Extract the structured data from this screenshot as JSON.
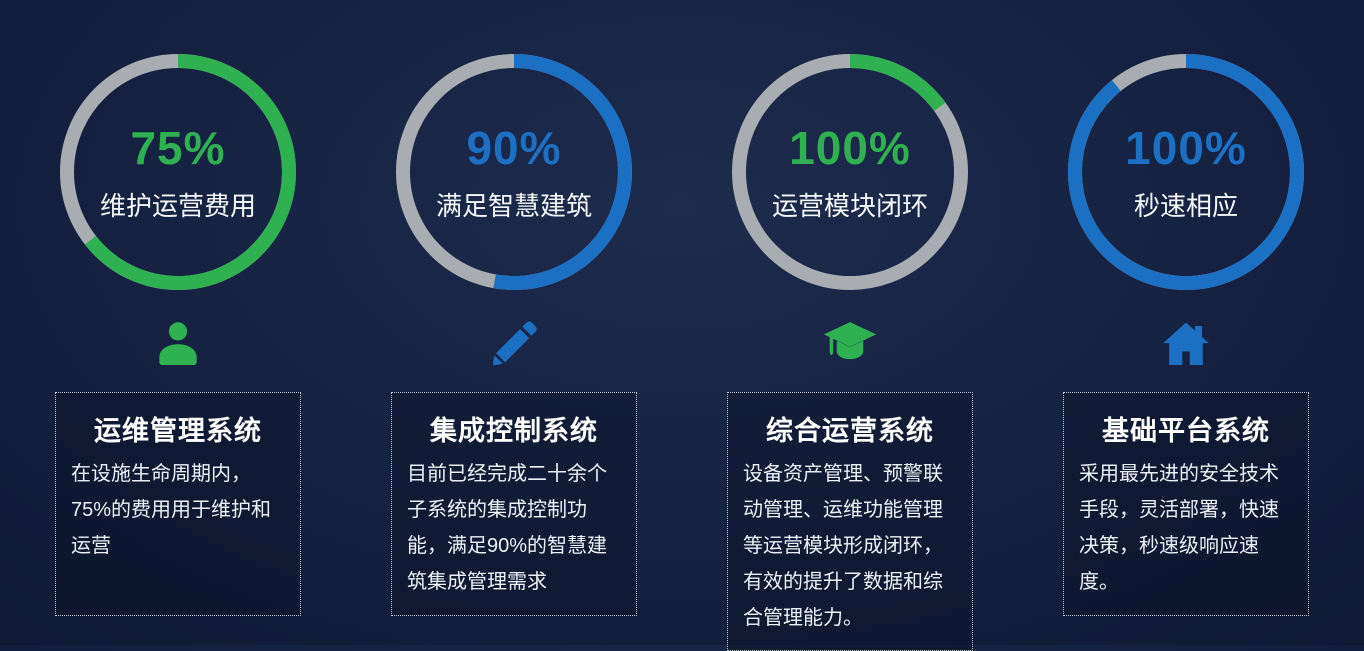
{
  "palette": {
    "green": "#2FB152",
    "blue": "#1C70C4",
    "track": "#A9ACB1",
    "background_center": "#1d2b4d",
    "background_edge": "#0a1122",
    "text_white": "#F5F7FA"
  },
  "chart_data": {
    "type": "pie",
    "variant": "donut-progress-gauges",
    "legend_position": "none",
    "series": [
      {
        "name": "维护运营费用",
        "value_label": "75%",
        "value": 75,
        "ring_fill_deg": 232,
        "color": "#2FB152"
      },
      {
        "name": "满足智慧建筑",
        "value_label": "90%",
        "value": 90,
        "ring_fill_deg": 190,
        "color": "#1C70C4"
      },
      {
        "name": "运营模块闭环",
        "value_label": "100%",
        "value": 100,
        "ring_fill_deg": 54,
        "color": "#2FB152"
      },
      {
        "name": "秒速相应",
        "value_label": "100%",
        "value": 100,
        "ring_fill_deg": 321,
        "color": "#1C70C4"
      }
    ]
  },
  "columns": [
    {
      "percent": "75%",
      "label": "维护运营费用",
      "accent": "#2FB152",
      "sweep_deg": 232,
      "icon": "person-icon",
      "card_title": "运维管理系统",
      "card_body": "在设施生命周期内，75%的费用用于维护和运营"
    },
    {
      "percent": "90%",
      "label": "满足智慧建筑",
      "accent": "#1C70C4",
      "sweep_deg": 190,
      "icon": "pencil-icon",
      "card_title": "集成控制系统",
      "card_body": "目前已经完成二十余个子系统的集成控制功能，满足90%的智慧建筑集成管理需求"
    },
    {
      "percent": "100%",
      "label": "运营模块闭环",
      "accent": "#2FB152",
      "sweep_deg": 54,
      "icon": "graduation-cap-icon",
      "card_title": "综合运营系统",
      "card_body": "设备资产管理、预警联动管理、运维功能管理等运营模块形成闭环，有效的提升了数据和综合管理能力。"
    },
    {
      "percent": "100%",
      "label": "秒速相应",
      "accent": "#1C70C4",
      "sweep_deg": 321,
      "icon": "home-icon",
      "card_title": "基础平台系统",
      "card_body": "采用最先进的安全技术手段，灵活部署，快速决策，秒速级响应速度。"
    }
  ]
}
